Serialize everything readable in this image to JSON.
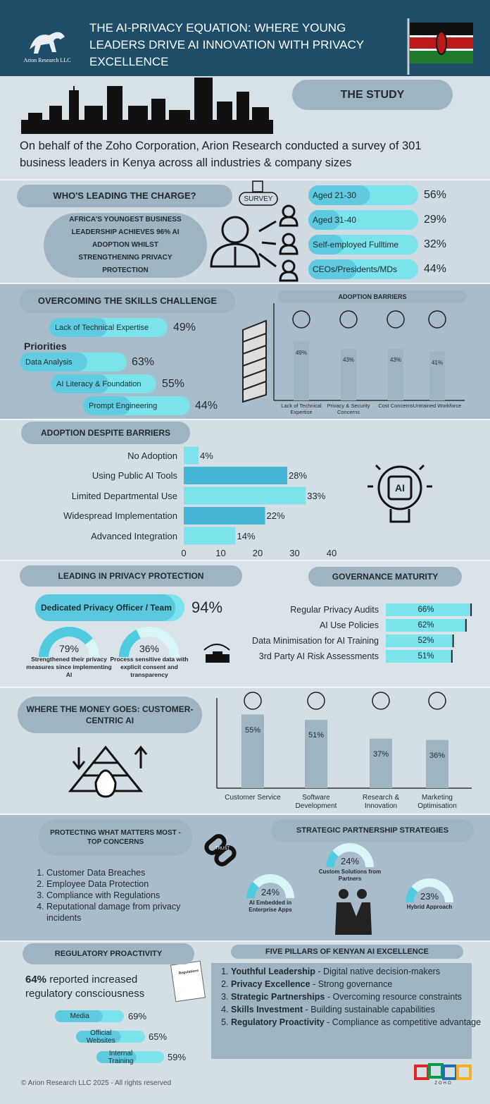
{
  "header": {
    "logo": "Arion Research LLC",
    "title": "THE AI-PRIVACY EQUATION: WHERE YOUNG LEADERS DRIVE AI INNOVATION WITH PRIVACY EXCELLENCE"
  },
  "study": {
    "heading": "THE STUDY",
    "text": "On behalf of the Zoho Corporation, Arion Research conducted a survey of 301 business leaders in Kenya across all industries & company sizes"
  },
  "leaders": {
    "heading": "WHO'S LEADING THE CHARGE?",
    "badge": "SURVEY",
    "callout": "AFRICA'S YOUNGEST BUSINESS LEADERSHIP ACHIEVES 96% AI ADOPTION WHILST STRENGTHENING PRIVACY PROTECTION",
    "items": [
      {
        "label": "Aged 21-30",
        "value": 56,
        "value_label": "56%"
      },
      {
        "label": "Aged 31-40",
        "value": 29,
        "value_label": "29%"
      },
      {
        "label": "Self-employed Fulltime",
        "value": 32,
        "value_label": "32%"
      },
      {
        "label": "CEOs/Presidents/MDs",
        "value": 44,
        "value_label": "44%"
      }
    ]
  },
  "skills": {
    "heading": "OVERCOMING THE SKILLS CHALLENGE",
    "lack": {
      "label": "Lack of Technical Expertise",
      "value": 49,
      "value_label": "49%"
    },
    "priorities_heading": "Priorities",
    "priorities": [
      {
        "label": "Data Analysis",
        "value": 63,
        "value_label": "63%"
      },
      {
        "label": "AI Literacy & Foundation",
        "value": 55,
        "value_label": "55%"
      },
      {
        "label": "Prompt Engineering",
        "value": 44,
        "value_label": "44%"
      }
    ],
    "chart": {
      "type": "bar",
      "title": "ADOPTION BARRIERS",
      "categories": [
        "Lack of Technical Expertise",
        "Privacy & Security Concerns",
        "Cost Concerns",
        "Untrained Workforce"
      ],
      "values": [
        49,
        43,
        43,
        41
      ],
      "value_labels": [
        "49%",
        "43%",
        "43%",
        "41%"
      ],
      "color": "#9fb4c2"
    }
  },
  "adoption": {
    "type": "bar",
    "orientation": "horizontal",
    "title": "ADOPTION DESPITE BARRIERS",
    "icon_label": "AI",
    "categories": [
      "No Adoption",
      "Using Public AI Tools",
      "Limited Departmental Use",
      "Widespread Implementation",
      "Advanced Integration"
    ],
    "values": [
      4,
      28,
      33,
      22,
      14
    ],
    "value_labels": [
      "4%",
      "28%",
      "33%",
      "22%",
      "14%"
    ],
    "colors": [
      "#7be3ec",
      "#45b6d6",
      "#7be3ec",
      "#45b6d6",
      "#7be3ec"
    ],
    "xlim": [
      0,
      40
    ],
    "xticks": [
      0,
      10,
      20,
      30,
      40
    ]
  },
  "privacy": {
    "heading": "LEADING IN PRIVACY PROTECTION",
    "dedicated": {
      "label": "Dedicated Privacy Officer / Team",
      "value": 94,
      "value_label": "94%"
    },
    "gauges": [
      {
        "value": 79,
        "value_label": "79%",
        "caption": "Strengthened their privacy measures since implementing AI"
      },
      {
        "value": 36,
        "value_label": "36%",
        "caption": "Process sensitive data with explicit consent and transparency"
      }
    ],
    "governance": {
      "heading": "GOVERNANCE MATURITY",
      "categories": [
        "Regular Privacy Audits",
        "AI Use Policies",
        "Data Minimisation for AI Training",
        "3rd Party AI Risk Assessments"
      ],
      "values": [
        66,
        62,
        52,
        51
      ],
      "value_labels": [
        "66%",
        "62%",
        "52%",
        "51%"
      ]
    }
  },
  "money": {
    "type": "bar",
    "heading": "WHERE THE MONEY GOES: CUSTOMER-CENTRIC AI",
    "categories": [
      "Customer Service",
      "Software Development",
      "Research & Innovation",
      "Marketing Optimisation"
    ],
    "values": [
      55,
      51,
      37,
      36
    ],
    "value_labels": [
      "55%",
      "51%",
      "37%",
      "36%"
    ],
    "color": "#9fb4c2"
  },
  "concerns": {
    "heading": "PROTECTING WHAT MATTERS MOST - TOP CONCERNS",
    "icon_label": "TRUST",
    "items": [
      "Customer Data Breaches",
      "Employee Data Protection",
      "Compliance with Regulations",
      "Reputational damage from privacy incidents"
    ]
  },
  "partnerships": {
    "heading": "STRATEGIC PARTNERSHIP STRATEGIES",
    "items": [
      {
        "value": 24,
        "value_label": "24%",
        "caption": "AI Embedded in Enterprise Apps"
      },
      {
        "value": 24,
        "value_label": "24%",
        "caption": "Custom Solutions from Partners"
      },
      {
        "value": 23,
        "value_label": "23%",
        "caption": "Hybrid Approach"
      }
    ]
  },
  "regulatory": {
    "heading": "REGULATORY PROACTIVITY",
    "stat_value": "64%",
    "stat_text": "reported increased regulatory consciousness",
    "doc_label": "Regulations",
    "channels": [
      {
        "label": "Media",
        "value": 69,
        "value_label": "69%"
      },
      {
        "label": "Official Websites",
        "value": 65,
        "value_label": "65%"
      },
      {
        "label": "Internal Training",
        "value": 59,
        "value_label": "59%"
      }
    ]
  },
  "pillars": {
    "heading": "FIVE PILLARS OF KENYAN AI EXCELLENCE",
    "items": [
      {
        "lead": "Youthful Leadership",
        "text": "- Digital native decision-makers"
      },
      {
        "lead": "Privacy Excellence",
        "text": "- Strong governance"
      },
      {
        "lead": "Strategic Partnerships",
        "text": "- Overcoming resource constraints"
      },
      {
        "lead": "Skills Investment",
        "text": "- Building sustainable capabilities"
      },
      {
        "lead": "Regulatory Proactivity",
        "text": "- Compliance as competitive advantage"
      }
    ]
  },
  "footer": {
    "copyright": "© Arion Research LLC 2025 - All rights reserved",
    "logo": "ZOHO"
  }
}
